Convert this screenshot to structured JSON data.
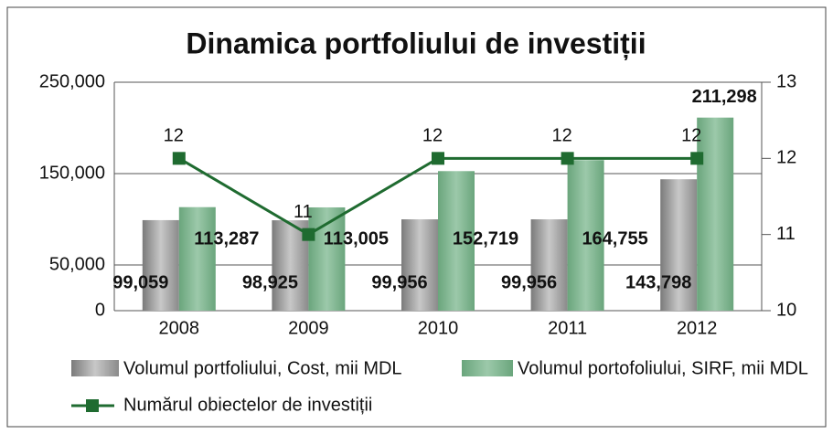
{
  "chart_data": {
    "type": "bar",
    "title": "Dinamica portfoliului de investiții",
    "categories": [
      "2008",
      "2009",
      "2010",
      "2011",
      "2012"
    ],
    "series": [
      {
        "name": "Volumul portfoliului, Cost, mii MDL",
        "color": "#c8c8c8",
        "values": [
          99059,
          98925,
          99956,
          99956,
          143798
        ],
        "value_labels": [
          "99,059",
          "98,925",
          "99,956",
          "99,956",
          "143,798"
        ]
      },
      {
        "name": "Volumul portofoliului, SIRF, mii MDL",
        "color": "#9cc9aa",
        "values": [
          113287,
          113005,
          152719,
          164755,
          211298
        ],
        "value_labels": [
          "113,287",
          "113,005",
          "152,719",
          "164,755",
          "211,298"
        ]
      },
      {
        "name": "Numărul obiectelor de investiții",
        "type": "line",
        "axis": "y2",
        "color": "#1f6b30",
        "values": [
          12,
          11,
          12,
          12,
          12
        ]
      }
    ],
    "ylim": [
      0,
      250000
    ],
    "yticks": [
      {
        "value": 0,
        "label": "0"
      },
      {
        "value": 50000,
        "label": "50,000"
      },
      {
        "value": 150000,
        "label": "150,000"
      },
      {
        "value": 250000,
        "label": "250,000"
      }
    ],
    "y2lim": [
      10,
      13
    ],
    "y2ticks": [
      10,
      11,
      12,
      13
    ],
    "grid": true
  }
}
